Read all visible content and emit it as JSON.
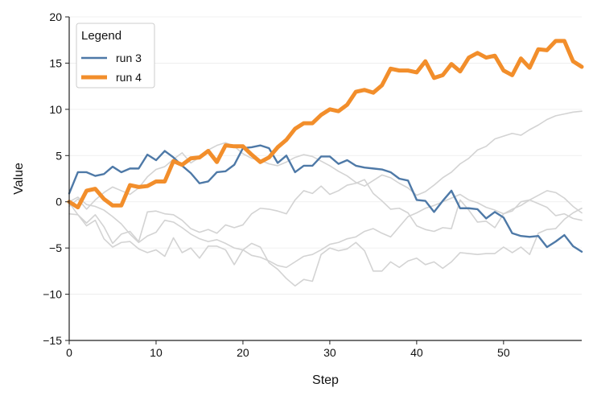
{
  "chart_data": {
    "type": "line",
    "title": "",
    "xlabel": "Step",
    "ylabel": "Value",
    "xlim": [
      0,
      59
    ],
    "ylim": [
      -15,
      20
    ],
    "x_ticks": [
      0,
      10,
      20,
      30,
      40,
      50
    ],
    "y_ticks": [
      -15,
      -10,
      -5,
      0,
      5,
      10,
      15,
      20
    ],
    "grid": "horizontal, faint",
    "legend": {
      "title": "Legend",
      "placement": "top-left",
      "entries": [
        "run 3",
        "run 4"
      ]
    },
    "series": [
      {
        "name": "run 3",
        "color": "#4e79a7",
        "emphasis": "medium",
        "values": [
          0.9,
          3.2,
          3.2,
          2.8,
          3.0,
          3.8,
          3.2,
          3.6,
          3.6,
          5.1,
          4.5,
          5.5,
          4.8,
          3.9,
          3.1,
          2.0,
          2.2,
          3.2,
          3.3,
          4.0,
          5.8,
          5.9,
          6.1,
          5.8,
          4.2,
          5.0,
          3.2,
          3.9,
          3.9,
          4.9,
          4.9,
          4.1,
          4.5,
          3.9,
          3.7,
          3.6,
          3.5,
          3.2,
          2.5,
          2.3,
          0.2,
          0.1,
          -1.1,
          0.1,
          1.2,
          -0.7,
          -0.7,
          -0.8,
          -1.8,
          -1.1,
          -1.7,
          -3.4,
          -3.7,
          -3.8,
          -3.7,
          -4.9,
          -4.3,
          -3.6,
          -4.8,
          -5.4
        ]
      },
      {
        "name": "run 4",
        "color": "#f28e2b",
        "emphasis": "high",
        "values": [
          0.0,
          -0.6,
          1.2,
          1.4,
          0.3,
          -0.4,
          -0.4,
          1.8,
          1.6,
          1.7,
          2.2,
          2.2,
          4.4,
          4.0,
          4.7,
          4.8,
          5.5,
          4.3,
          6.1,
          6.0,
          6.0,
          5.1,
          4.3,
          4.8,
          5.9,
          6.7,
          7.9,
          8.5,
          8.5,
          9.4,
          10.0,
          9.8,
          10.5,
          11.9,
          12.1,
          11.8,
          12.6,
          14.4,
          14.2,
          14.2,
          14.0,
          15.2,
          13.4,
          13.7,
          14.9,
          14.1,
          15.6,
          16.1,
          15.6,
          15.8,
          14.2,
          13.7,
          15.5,
          14.5,
          16.5,
          16.4,
          17.4,
          17.4,
          15.2,
          14.6
        ]
      },
      {
        "name": "",
        "color": "#d3d3d3",
        "emphasis": "background",
        "values": [
          -1.3,
          -1.4,
          -2.6,
          -2.0,
          -4.0,
          -4.9,
          -4.4,
          -4.3,
          -5.1,
          -5.5,
          -5.2,
          -5.9,
          -3.9,
          -5.5,
          -5.0,
          -6.1,
          -4.8,
          -4.8,
          -5.2,
          -6.8,
          -5.2,
          -4.5,
          -4.9,
          -6.6,
          -7.3,
          -8.3,
          -9.1,
          -8.4,
          -8.6,
          -5.7,
          -5.0,
          -5.3,
          -5.1,
          -4.4,
          -5.3,
          -7.5,
          -7.5,
          -6.5,
          -7.1,
          -6.4,
          -6.1,
          -6.8,
          -6.5,
          -7.2,
          -6.5,
          -5.5,
          -5.6,
          -5.7,
          -5.6,
          -5.6,
          -4.9,
          -5.5,
          -4.9,
          -5.7,
          -3.4,
          -3.0,
          -2.9,
          -1.9,
          -1.2,
          -0.7
        ]
      },
      {
        "name": "",
        "color": "#d3d3d3",
        "emphasis": "background",
        "values": [
          -0.1,
          -1.4,
          -2.3,
          -1.4,
          -2.7,
          -4.5,
          -3.5,
          -3.2,
          -4.3,
          -1.1,
          -1.0,
          -1.3,
          -1.4,
          -2.0,
          -2.9,
          -3.3,
          -3.0,
          -3.4,
          -2.5,
          -2.8,
          -2.5,
          -1.3,
          -0.7,
          -0.8,
          -1.0,
          -1.3,
          0.2,
          1.2,
          0.9,
          1.7,
          0.8,
          1.2,
          1.8,
          2.0,
          2.4,
          0.9,
          0.1,
          -0.8,
          -0.7,
          -1.2,
          -2.6,
          -3.0,
          -3.2,
          -2.8,
          -2.9,
          0.2,
          -0.9,
          -2.2,
          -2.1,
          -2.8,
          -1.3,
          -1.0,
          0.0,
          0.2,
          -0.2,
          -0.6,
          -1.5,
          -1.3,
          -1.8,
          -2.0
        ]
      },
      {
        "name": "",
        "color": "#d3d3d3",
        "emphasis": "background",
        "values": [
          0.0,
          0.5,
          -0.3,
          -0.5,
          -0.9,
          -1.6,
          -2.4,
          -3.5,
          -4.4,
          -3.7,
          -3.3,
          -2.0,
          -2.2,
          -2.8,
          -3.5,
          -4.0,
          -4.3,
          -4.1,
          -4.5,
          -5.0,
          -5.2,
          -5.8,
          -6.0,
          -6.4,
          -6.9,
          -7.1,
          -6.5,
          -5.9,
          -5.7,
          -5.2,
          -4.6,
          -4.4,
          -4.0,
          -3.8,
          -3.2,
          -2.9,
          -3.4,
          -3.8,
          -2.7,
          -1.6,
          -1.2,
          -0.7,
          -0.4,
          0.0,
          0.4,
          0.8,
          0.2,
          -0.1,
          -0.6,
          -0.9,
          -1.3,
          -0.8,
          -0.4,
          0.2,
          0.7,
          1.2,
          1.0,
          0.4,
          -0.5,
          -1.2
        ]
      },
      {
        "name": "",
        "color": "#d3d3d3",
        "emphasis": "background",
        "values": [
          -0.5,
          0.3,
          -0.8,
          0.2,
          1.0,
          1.6,
          1.2,
          0.8,
          1.5,
          2.7,
          3.5,
          3.8,
          4.6,
          5.3,
          4.2,
          4.8,
          5.6,
          6.1,
          6.4,
          6.0,
          5.2,
          4.7,
          4.5,
          4.1,
          3.9,
          4.3,
          4.8,
          5.1,
          4.9,
          4.4,
          3.9,
          3.3,
          2.8,
          2.1,
          1.7,
          2.3,
          2.9,
          2.6,
          2.0,
          1.5,
          0.7,
          1.1,
          1.8,
          2.6,
          3.2,
          4.1,
          4.7,
          5.6,
          6.0,
          6.8,
          7.1,
          7.4,
          7.2,
          7.8,
          8.3,
          8.9,
          9.3,
          9.5,
          9.7,
          9.8
        ]
      }
    ]
  }
}
